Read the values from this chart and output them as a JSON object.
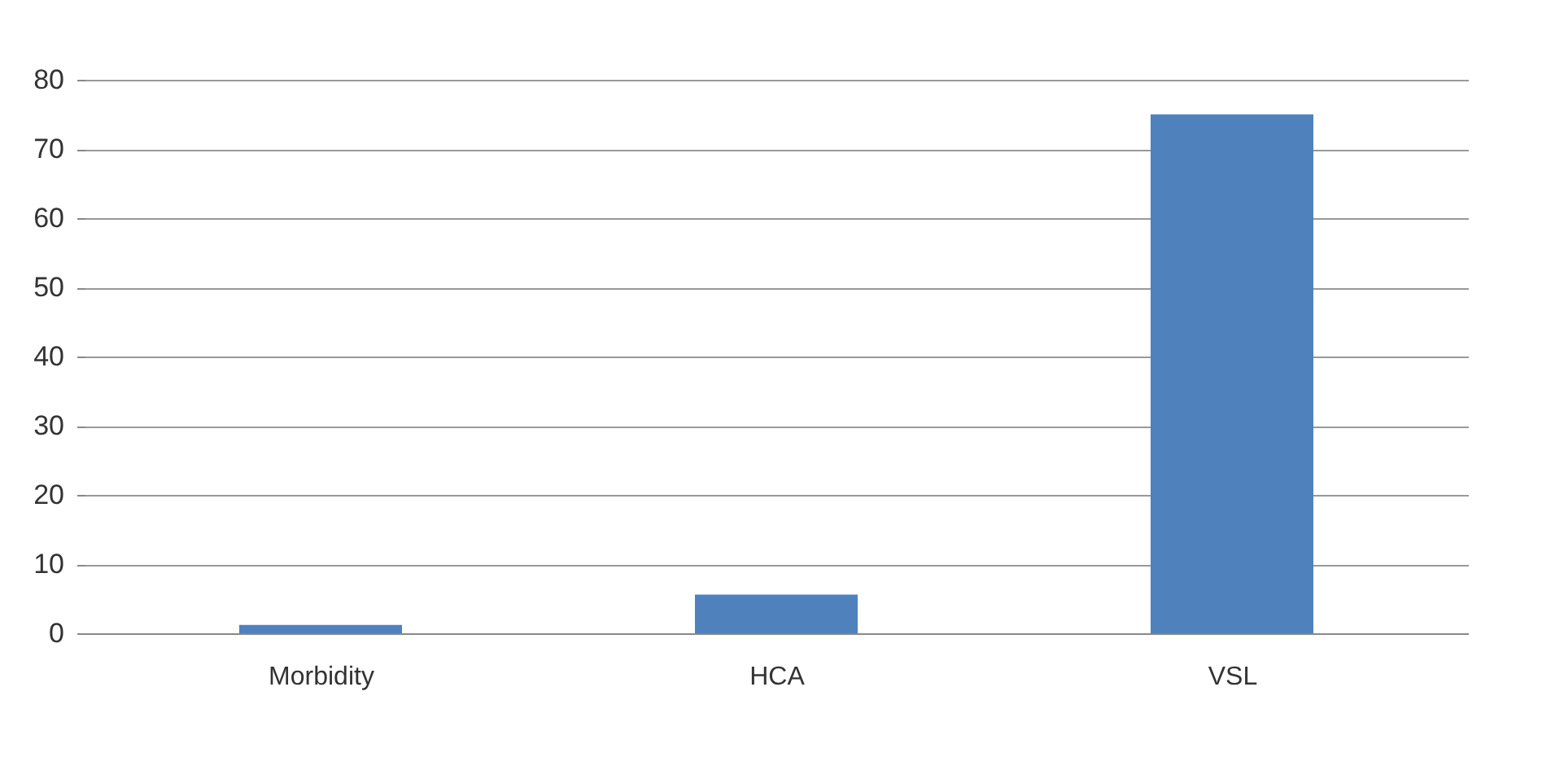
{
  "chart_data": {
    "type": "bar",
    "categories": [
      "Morbidity",
      "HCA",
      "VSL"
    ],
    "values": [
      1.2,
      5.6,
      75
    ],
    "color": "#4f81bd",
    "ylim": [
      0,
      80
    ],
    "yticks": [
      0,
      10,
      20,
      30,
      40,
      50,
      60,
      70,
      80
    ],
    "grid": "y"
  }
}
